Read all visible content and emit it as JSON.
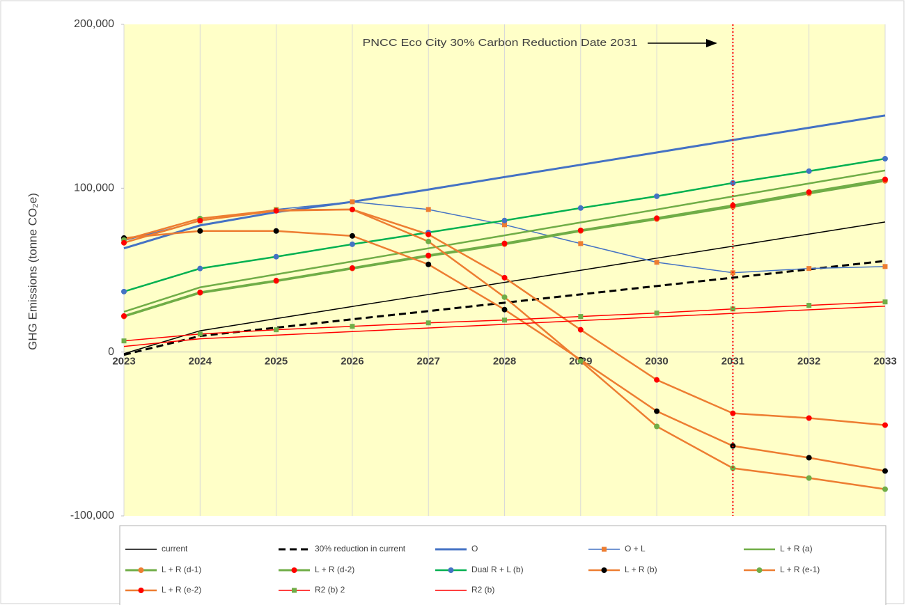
{
  "chart_data": {
    "type": "line",
    "y_label": "GHG Emissions (tonne CO₂e)",
    "annotation": {
      "text": "PNCC Eco City 30% Carbon Reduction Date 2031",
      "x": 2031,
      "color": "#ff0000"
    },
    "x": [
      2023,
      2024,
      2025,
      2026,
      2027,
      2028,
      2029,
      2030,
      2031,
      2032,
      2033
    ],
    "xlim": [
      2023,
      2033
    ],
    "xticks": [
      2023,
      2024,
      2025,
      2026,
      2027,
      2028,
      2029,
      2030,
      2031,
      2032,
      2033
    ],
    "ylim": [
      -100000,
      200000
    ],
    "yticks": [
      {
        "value": -100000,
        "label": "-100,000"
      },
      0,
      {
        "value": 100000,
        "label": "100,000"
      },
      {
        "value": 200000,
        "label": "200,000"
      }
    ],
    "grid": "x",
    "background": "#ffffc8",
    "legend": "bottom",
    "series": [
      {
        "name": "current",
        "color": "#000000",
        "line_width": 1.5,
        "values": [
          -1000,
          13000,
          20400,
          27800,
          35100,
          42500,
          49900,
          57300,
          64600,
          72000,
          79400
        ]
      },
      {
        "name": "30% reduction in current",
        "color": "#000000",
        "line_width": 3,
        "dashed": true,
        "values": [
          -1700,
          9800,
          14900,
          20000,
          25000,
          30100,
          35200,
          40300,
          45400,
          50500,
          55600
        ]
      },
      {
        "name": "O",
        "color": "#4472c4",
        "line_width": 3,
        "values": [
          63300,
          77300,
          85400,
          91700,
          99200,
          106800,
          114300,
          121800,
          129400,
          136900,
          144400
        ]
      },
      {
        "name": "O + L",
        "color": "#4472c4",
        "line_width": 1.5,
        "marker": "square",
        "marker_color": "#ed7d31",
        "values": [
          68000,
          80000,
          87000,
          91700,
          87000,
          77700,
          66200,
          54800,
          48400,
          51000,
          52200
        ]
      },
      {
        "name": "L + R (a)",
        "color": "#70ad47",
        "line_width": 2.5,
        "values": [
          24600,
          39500,
          47400,
          55300,
          63300,
          71200,
          79100,
          87000,
          95000,
          102900,
          110800
        ]
      },
      {
        "name": "L + R (d-1)",
        "color": "#70ad47",
        "line_width": 3,
        "marker": "circle",
        "marker_color": "#ed7d31",
        "values": [
          21700,
          36100,
          43300,
          51000,
          58600,
          65800,
          73900,
          81100,
          88700,
          96800,
          104500
        ]
      },
      {
        "name": "L + R (d-2)",
        "color": "#70ad47",
        "line_width": 3,
        "marker": "circle",
        "marker_color": "#ff0000",
        "values": [
          22000,
          36400,
          43600,
          51300,
          59000,
          66300,
          74300,
          81700,
          89500,
          97600,
          105400
        ]
      },
      {
        "name": "Dual R + L (b)",
        "color": "#00b050",
        "line_width": 2.5,
        "marker": "circle",
        "marker_color": "#4472c4",
        "values": [
          36900,
          51000,
          58200,
          65800,
          73000,
          80300,
          87900,
          95100,
          103200,
          110400,
          118000
        ]
      },
      {
        "name": "L + R (b)",
        "color": "#ed7d31",
        "line_width": 2.5,
        "marker": "circle",
        "marker_color": "#000000",
        "values": [
          69600,
          73900,
          73900,
          70900,
          53500,
          25900,
          -4700,
          -36100,
          -57300,
          -64500,
          -72600
        ]
      },
      {
        "name": "L + R (e-1)",
        "color": "#ed7d31",
        "line_width": 2.5,
        "marker": "circle",
        "marker_color": "#70ad47",
        "values": [
          68400,
          81500,
          86600,
          87000,
          67500,
          33500,
          -5500,
          -45400,
          -70900,
          -76900,
          -83700
        ]
      },
      {
        "name": "L + R (e-2)",
        "color": "#ed7d31",
        "line_width": 2.5,
        "marker": "circle",
        "marker_color": "#ff0000",
        "values": [
          66700,
          80300,
          86200,
          87000,
          71800,
          45400,
          13600,
          -17000,
          -37400,
          -40300,
          -44600
        ]
      },
      {
        "name": "R2 (b) 2",
        "color": "#ff0000",
        "line_width": 1.5,
        "marker": "square",
        "marker_color": "#70ad47",
        "values": [
          6800,
          11000,
          13600,
          15700,
          17800,
          19500,
          21700,
          23800,
          26300,
          28500,
          30600
        ]
      },
      {
        "name": "R2 (b)",
        "color": "#ff0000",
        "line_width": 1.5,
        "values": [
          3400,
          8100,
          10300,
          12500,
          14700,
          16900,
          19200,
          21400,
          23600,
          25800,
          28000
        ]
      }
    ]
  }
}
